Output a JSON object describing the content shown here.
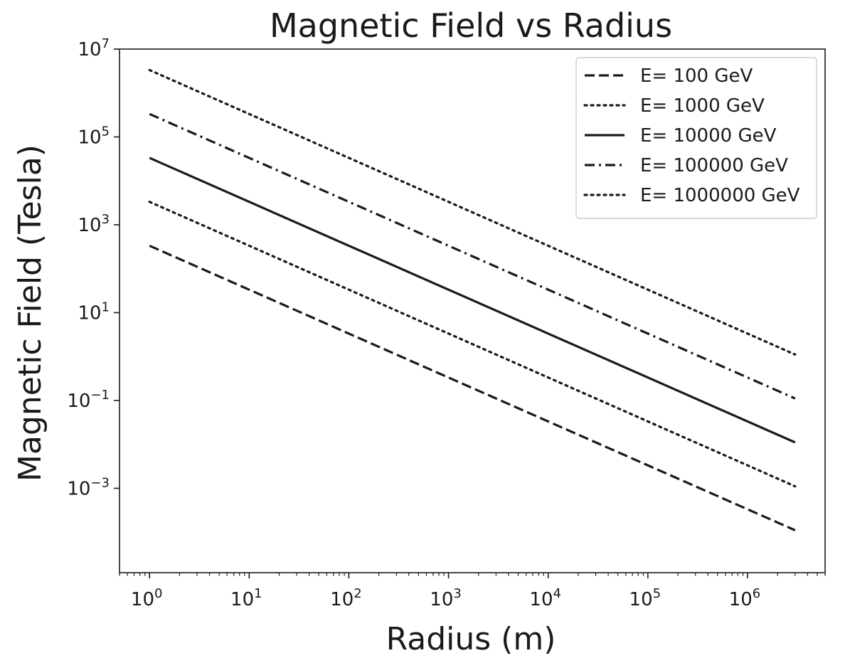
{
  "chart_data": {
    "type": "line",
    "scale": {
      "x": "log",
      "y": "log"
    },
    "title": "Magnetic Field vs Radius",
    "xlabel": "Radius (m)",
    "ylabel": "Magnetic Field (Tesla)",
    "xlim": [
      0.5,
      6000000
    ],
    "ylim": [
      1.2e-05,
      10000000
    ],
    "x_ticks": [
      {
        "value": 1,
        "base": "10",
        "exp": "0"
      },
      {
        "value": 10,
        "base": "10",
        "exp": "1"
      },
      {
        "value": 100,
        "base": "10",
        "exp": "2"
      },
      {
        "value": 1000,
        "base": "10",
        "exp": "3"
      },
      {
        "value": 10000,
        "base": "10",
        "exp": "4"
      },
      {
        "value": 100000,
        "base": "10",
        "exp": "5"
      },
      {
        "value": 1000000,
        "base": "10",
        "exp": "6"
      }
    ],
    "y_ticks": [
      {
        "value": 0.001,
        "base": "10",
        "exp": "−3"
      },
      {
        "value": 0.1,
        "base": "10",
        "exp": "−1"
      },
      {
        "value": 10,
        "base": "10",
        "exp": "1"
      },
      {
        "value": 1000,
        "base": "10",
        "exp": "3"
      },
      {
        "value": 100000,
        "base": "10",
        "exp": "5"
      },
      {
        "value": 10000000,
        "base": "10",
        "exp": "7"
      }
    ],
    "legend_position": "top-right",
    "series": [
      {
        "name": "E= 100 GeV",
        "style": "dashed",
        "x": [
          1,
          3000000
        ],
        "y": [
          333,
          0.000111
        ]
      },
      {
        "name": "E= 1000 GeV",
        "style": "dotted",
        "x": [
          1,
          3000000
        ],
        "y": [
          3333,
          0.00111
        ]
      },
      {
        "name": "E= 10000 GeV",
        "style": "solid",
        "x": [
          1,
          3000000
        ],
        "y": [
          33333,
          0.0111
        ]
      },
      {
        "name": "E= 100000 GeV",
        "style": "dashdot",
        "x": [
          1,
          3000000
        ],
        "y": [
          333333,
          0.111
        ]
      },
      {
        "name": "E= 1000000 GeV",
        "style": "dotted",
        "x": [
          1,
          3000000
        ],
        "y": [
          3333333,
          1.11
        ]
      }
    ],
    "colors": {
      "line": "#1a1a1a",
      "frame": "#1a1a1a",
      "legend_border": "#cccccc"
    }
  }
}
